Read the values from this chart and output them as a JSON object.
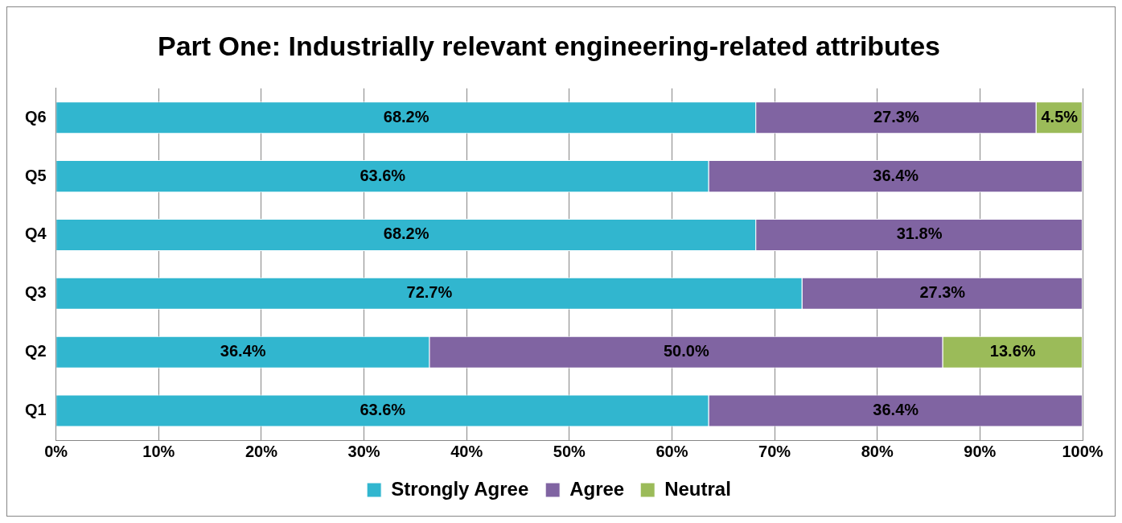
{
  "chart_data": {
    "type": "bar",
    "orientation": "horizontal",
    "stacked": true,
    "title": "Part One: Industrially relevant engineering-related attributes",
    "categories": [
      "Q6",
      "Q5",
      "Q4",
      "Q3",
      "Q2",
      "Q1"
    ],
    "series": [
      {
        "name": "Strongly Agree",
        "color": "#31b6cf",
        "values": [
          68.2,
          63.6,
          68.2,
          72.7,
          36.4,
          63.6
        ],
        "value_labels": [
          "68.2%",
          "63.6%",
          "68.2%",
          "72.7%",
          "36.4%",
          "63.6%"
        ]
      },
      {
        "name": "Agree",
        "color": "#8064a2",
        "values": [
          27.3,
          36.4,
          31.8,
          27.3,
          50.0,
          36.4
        ],
        "value_labels": [
          "27.3%",
          "36.4%",
          "31.8%",
          "27.3%",
          "50.0%",
          "36.4%"
        ]
      },
      {
        "name": "Neutral",
        "color": "#9bbb59",
        "values": [
          4.5,
          null,
          null,
          null,
          13.6,
          null
        ],
        "value_labels": [
          "4.5%",
          null,
          null,
          null,
          "13.6%",
          null
        ]
      }
    ],
    "xlim": [
      0,
      100
    ],
    "xticks": [
      {
        "value": 0,
        "label": "0%"
      },
      {
        "value": 10,
        "label": "10%"
      },
      {
        "value": 20,
        "label": "20%"
      },
      {
        "value": 30,
        "label": "30%"
      },
      {
        "value": 40,
        "label": "40%"
      },
      {
        "value": 50,
        "label": "50%"
      },
      {
        "value": 60,
        "label": "60%"
      },
      {
        "value": 70,
        "label": "70%"
      },
      {
        "value": 80,
        "label": "80%"
      },
      {
        "value": 90,
        "label": "90%"
      },
      {
        "value": 100,
        "label": "100%"
      }
    ],
    "grid": "x",
    "legend": "bottom"
  }
}
